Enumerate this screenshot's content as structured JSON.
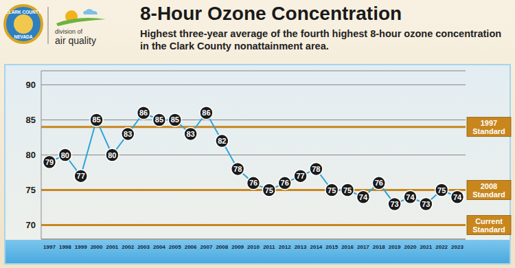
{
  "logo": {
    "seal_top": "CLARK COUNTY",
    "seal_bottom": "NEVADA",
    "division": "division of",
    "name": "air quality"
  },
  "chart_data": {
    "type": "line",
    "title": "8-Hour Ozone Concentration",
    "subtitle": "Highest three-year average of the fourth highest 8-hour ozone concentration in the Clark County nonattainment area.",
    "categories": [
      "1997",
      "1998",
      "1999",
      "2000",
      "2001",
      "2002",
      "2003",
      "2004",
      "2005",
      "2006",
      "2007",
      "2008",
      "2009",
      "2010",
      "2011",
      "2012",
      "2013",
      "2014",
      "2015",
      "2016",
      "2017",
      "2018",
      "2019",
      "2020",
      "2021",
      "2022",
      "2023"
    ],
    "values": [
      79,
      80,
      77,
      85,
      80,
      83,
      86,
      85,
      85,
      83,
      86,
      82,
      78,
      76,
      75,
      76,
      77,
      78,
      75,
      75,
      74,
      76,
      73,
      74,
      73,
      75,
      74
    ],
    "color": "#2ea3dc",
    "marker": "circle",
    "data_labels": true,
    "ylim": [
      68,
      92
    ],
    "yticks": [
      70,
      75,
      80,
      85,
      90
    ],
    "grid": true,
    "standards": [
      {
        "label": "1997 Standard",
        "value": 84
      },
      {
        "label": "2008 Standard",
        "value": 75
      },
      {
        "label": "Current Standard",
        "value": 70
      }
    ]
  }
}
